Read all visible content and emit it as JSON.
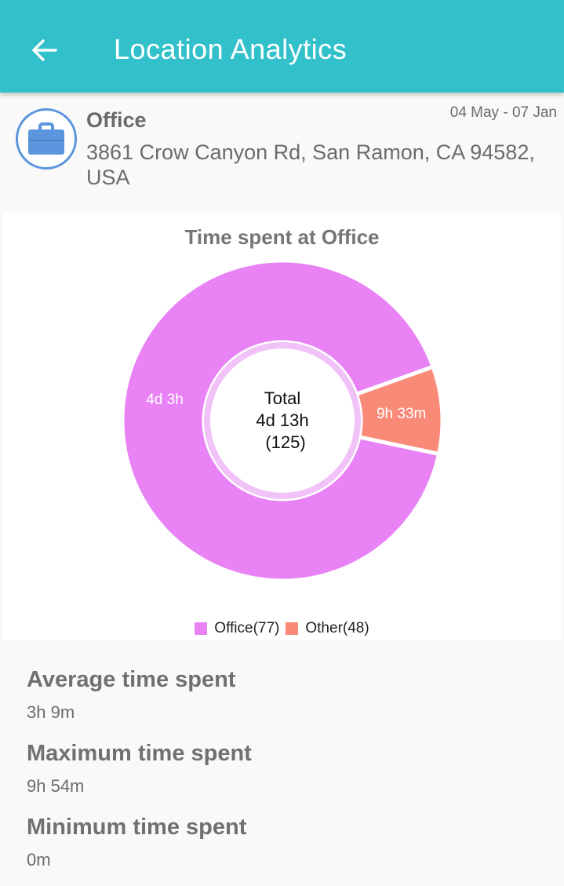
{
  "app_bar": {
    "title": "Location Analytics",
    "back_icon": "arrow-left-icon",
    "background": "#32c1cb"
  },
  "location": {
    "name": "Office",
    "date_range": "04 May - 07 Jan",
    "address": "3861 Crow Canyon Rd, San Ramon, CA 94582, USA",
    "icon": "briefcase-icon",
    "icon_color": "#5b95dd"
  },
  "chart_data": {
    "type": "pie",
    "title": "Time spent at Office",
    "center": {
      "line1": "Total",
      "line2": "4d 13h",
      "line3": "(125)"
    },
    "slices": [
      {
        "label": "4d 3h",
        "value": 5943,
        "color": "#e882f5"
      },
      {
        "label": "9h 33m",
        "value": 573,
        "color": "#fa8a78"
      }
    ],
    "legend": [
      {
        "label": "Office(77)",
        "color": "#e882f5"
      },
      {
        "label": "Other(48)",
        "color": "#fa8a78"
      }
    ],
    "legend_placement": "bottom-center"
  },
  "stats": [
    {
      "label": "Average time spent",
      "value": "3h 9m"
    },
    {
      "label": "Maximum time spent",
      "value": "9h 54m"
    },
    {
      "label": "Minimum time spent",
      "value": "0m"
    }
  ]
}
